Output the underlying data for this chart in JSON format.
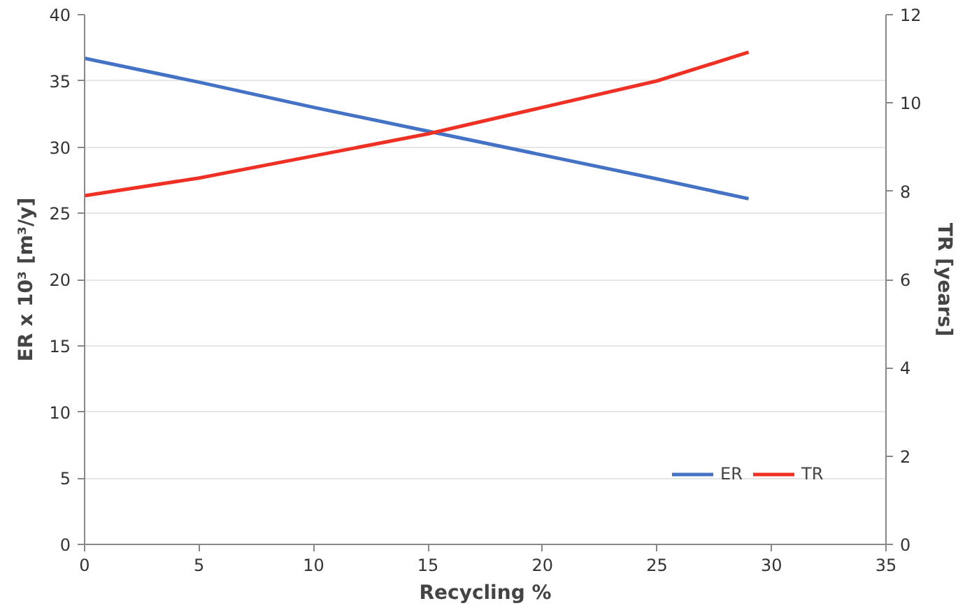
{
  "chart_data": {
    "type": "line",
    "xlabel": "Recycling %",
    "ylabel": "ER x 10³ [m³/y]",
    "y2label": "TR [years]",
    "x": [
      0,
      5,
      10,
      15,
      20,
      25,
      29
    ],
    "series": [
      {
        "name": "ER",
        "color": "#4472c4",
        "values": [
          36.7,
          34.9,
          33.0,
          31.2,
          29.4,
          27.6,
          26.1
        ]
      },
      {
        "name": "TR",
        "color": "#ee3124",
        "axis": "y2",
        "values": [
          7.9,
          8.3,
          8.8,
          9.3,
          9.9,
          10.5,
          11.15
        ]
      }
    ],
    "xlim": [
      0,
      35
    ],
    "xticks": [
      0,
      5,
      10,
      15,
      20,
      25,
      30,
      35
    ],
    "ylim": [
      0,
      40
    ],
    "yticks": [
      0,
      5,
      10,
      15,
      20,
      25,
      30,
      35,
      40
    ],
    "y2lim": [
      0,
      12
    ],
    "y2ticks": [
      0,
      2,
      4,
      6,
      8,
      10,
      12
    ],
    "grid": "y",
    "legend": "bottom right",
    "marker": "none",
    "line_style": "solid"
  }
}
